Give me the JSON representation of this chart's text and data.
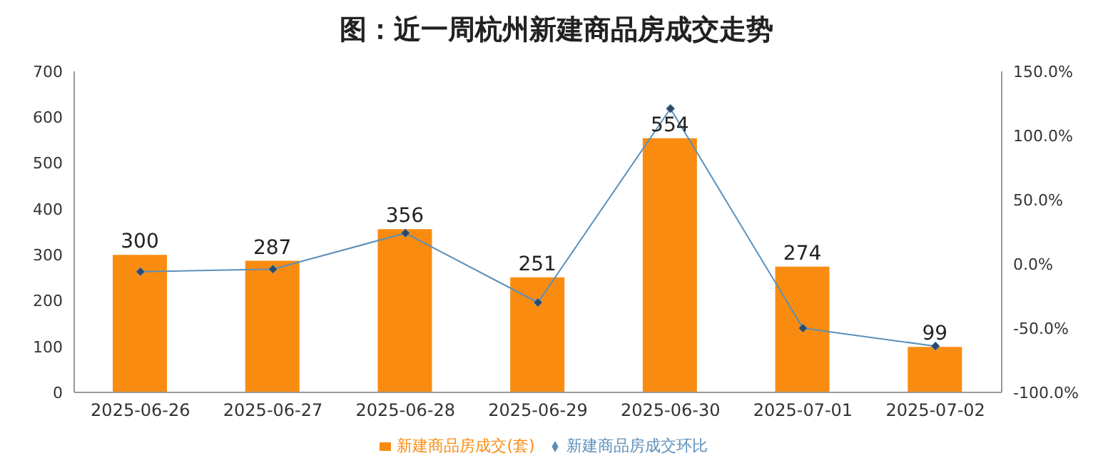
{
  "chart_data": {
    "type": "bar",
    "title": "图：近一周杭州新建商品房成交走势",
    "categories": [
      "2025-06-26",
      "2025-06-27",
      "2025-06-28",
      "2025-06-29",
      "2025-06-30",
      "2025-07-01",
      "2025-07-02"
    ],
    "series": [
      {
        "name": "新建商品房成交(套)",
        "color": "#f98c10",
        "values": [
          300,
          287,
          356,
          251,
          554,
          274,
          99
        ],
        "value_labels": [
          "300",
          "287",
          "356",
          "251",
          "554",
          "274",
          "99"
        ]
      },
      {
        "name": "新建商品房成交环比",
        "type": "line",
        "axis": "y2",
        "color": "#5b8fba",
        "marker": "diamond",
        "values": [
          -6,
          -4,
          24,
          -30,
          121,
          -50,
          -64
        ]
      }
    ],
    "ylim": [
      0,
      700
    ],
    "yticks": [
      0,
      100,
      200,
      300,
      400,
      500,
      600,
      700
    ],
    "y2lim": [
      -100,
      150
    ],
    "y2ticks": [
      {
        "value": -100,
        "label": "-100.0%"
      },
      {
        "value": -50,
        "label": "-50.0%"
      },
      {
        "value": 0,
        "label": "0.0%"
      },
      {
        "value": 50,
        "label": "50.0%"
      },
      {
        "value": 100,
        "label": "100.0%"
      },
      {
        "value": 150,
        "label": "150.0%"
      }
    ],
    "grid": false,
    "legend": "bottom"
  }
}
